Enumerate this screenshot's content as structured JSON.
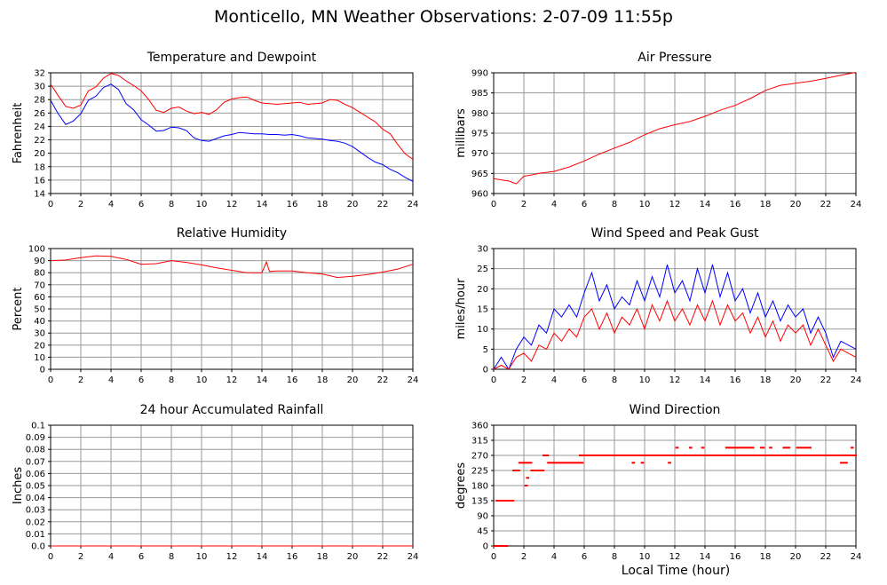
{
  "title": "Monticello, MN Weather Observations: 2-07-09 11:55p",
  "x_axis_title": "Local Time (hour)",
  "colors": {
    "red": "#ff0000",
    "blue": "#0000ff",
    "grid": "#999999",
    "frame": "#000000"
  },
  "chart_data": [
    {
      "id": "temperature",
      "type": "line",
      "title": "Temperature and Dewpoint",
      "ylabel": "Fahrenheit",
      "xlim": [
        0,
        24
      ],
      "ylim": [
        14,
        32
      ],
      "xticks": [
        "0",
        "2",
        "4",
        "6",
        "8",
        "10",
        "12",
        "14",
        "16",
        "18",
        "20",
        "22",
        "24"
      ],
      "yticks": [
        "14",
        "16",
        "18",
        "20",
        "22",
        "24",
        "26",
        "28",
        "30",
        "32"
      ],
      "grid": true,
      "series": [
        {
          "color": "#ff0000",
          "x": [
            0,
            0.5,
            1,
            1.5,
            2,
            2.5,
            3,
            3.5,
            4,
            4.5,
            5,
            5.5,
            6,
            6.5,
            7,
            7.5,
            8,
            8.5,
            9,
            9.5,
            10,
            10.5,
            11,
            11.5,
            12,
            12.5,
            13,
            13.5,
            14,
            14.5,
            15,
            15.5,
            16,
            16.5,
            17,
            17.5,
            18,
            18.5,
            19,
            19.5,
            20,
            20.5,
            21,
            21.5,
            22,
            22.5,
            23,
            23.5,
            24
          ],
          "y": [
            30.3,
            28.6,
            27.0,
            26.7,
            27.2,
            29.3,
            29.9,
            31.2,
            31.9,
            31.6,
            30.8,
            30.1,
            29.3,
            28.0,
            26.4,
            26.1,
            26.7,
            26.9,
            26.3,
            25.9,
            26.1,
            25.8,
            26.5,
            27.6,
            28.1,
            28.3,
            28.4,
            27.9,
            27.5,
            27.4,
            27.3,
            27.4,
            27.5,
            27.6,
            27.3,
            27.4,
            27.5,
            28.0,
            27.9,
            27.3,
            26.8,
            26.1,
            25.4,
            24.7,
            23.6,
            22.9,
            21.3,
            19.9,
            19.1
          ]
        },
        {
          "color": "#0000ff",
          "x": [
            0,
            0.5,
            1,
            1.5,
            2,
            2.5,
            3,
            3.5,
            4,
            4.5,
            5,
            5.5,
            6,
            6.5,
            7,
            7.5,
            8,
            8.5,
            9,
            9.5,
            10,
            10.5,
            11,
            11.5,
            12,
            12.5,
            13,
            13.5,
            14,
            14.5,
            15,
            15.5,
            16,
            16.5,
            17,
            17.5,
            18,
            18.5,
            19,
            19.5,
            20,
            20.5,
            21,
            21.5,
            22,
            22.5,
            23,
            23.5,
            24
          ],
          "y": [
            27.9,
            25.9,
            24.3,
            24.8,
            25.9,
            27.9,
            28.5,
            29.8,
            30.3,
            29.5,
            27.4,
            26.5,
            25.0,
            24.2,
            23.3,
            23.4,
            23.9,
            23.8,
            23.4,
            22.3,
            21.9,
            21.8,
            22.2,
            22.6,
            22.8,
            23.1,
            23.0,
            22.9,
            22.9,
            22.8,
            22.8,
            22.7,
            22.8,
            22.6,
            22.3,
            22.2,
            22.1,
            21.9,
            21.8,
            21.5,
            21.0,
            20.2,
            19.4,
            18.7,
            18.3,
            17.6,
            17.1,
            16.4,
            15.8
          ]
        }
      ]
    },
    {
      "id": "pressure",
      "type": "line",
      "title": "Air Pressure",
      "ylabel": "millibars",
      "xlim": [
        0,
        24
      ],
      "ylim": [
        960,
        990
      ],
      "xticks": [
        "0",
        "2",
        "4",
        "6",
        "8",
        "10",
        "12",
        "14",
        "16",
        "18",
        "20",
        "22",
        "24"
      ],
      "yticks": [
        "960",
        "965",
        "970",
        "975",
        "980",
        "985",
        "990"
      ],
      "grid": true,
      "series": [
        {
          "color": "#ff0000",
          "x": [
            0,
            0.5,
            1,
            1.5,
            2,
            2.5,
            3,
            4,
            5,
            6,
            7,
            8,
            9,
            10,
            11,
            12,
            13,
            14,
            15,
            16,
            17,
            18,
            19,
            20,
            21,
            22,
            23,
            24
          ],
          "y": [
            963.7,
            963.4,
            963.1,
            962.4,
            964.3,
            964.6,
            965.0,
            965.5,
            966.6,
            968.1,
            969.8,
            971.3,
            972.7,
            974.6,
            976.1,
            977.1,
            977.9,
            979.2,
            980.7,
            981.9,
            983.6,
            985.6,
            986.9,
            987.4,
            987.9,
            988.6,
            989.4,
            990.1
          ]
        }
      ]
    },
    {
      "id": "humidity",
      "type": "line",
      "title": "Relative Humidity",
      "ylabel": "Percent",
      "xlim": [
        0,
        24
      ],
      "ylim": [
        0,
        100
      ],
      "xticks": [
        "0",
        "2",
        "4",
        "6",
        "8",
        "10",
        "12",
        "14",
        "16",
        "18",
        "20",
        "22",
        "24"
      ],
      "yticks": [
        "0",
        "10",
        "20",
        "30",
        "40",
        "50",
        "60",
        "70",
        "80",
        "90",
        "100"
      ],
      "grid": true,
      "series": [
        {
          "color": "#ff0000",
          "x": [
            0,
            1,
            2,
            3,
            4,
            5,
            6,
            7,
            8,
            9,
            10,
            11,
            12,
            13,
            14,
            14.3,
            14.5,
            15,
            16,
            17,
            18,
            19,
            20,
            21,
            22,
            23,
            24
          ],
          "y": [
            90,
            90.5,
            92.5,
            94,
            93.5,
            91,
            87,
            87.5,
            90,
            88.5,
            86.5,
            84,
            82,
            80,
            80,
            89,
            81,
            81.5,
            81.5,
            80,
            79,
            76,
            77,
            78.5,
            80.5,
            83,
            87
          ]
        }
      ]
    },
    {
      "id": "wind-speed",
      "type": "line",
      "title": "Wind Speed and Peak Gust",
      "ylabel": "miles/hour",
      "xlim": [
        0,
        24
      ],
      "ylim": [
        0,
        30
      ],
      "xticks": [
        "0",
        "2",
        "4",
        "6",
        "8",
        "10",
        "12",
        "14",
        "16",
        "18",
        "20",
        "22",
        "24"
      ],
      "yticks": [
        "0",
        "5",
        "10",
        "15",
        "20",
        "25",
        "30"
      ],
      "grid": true,
      "series": [
        {
          "color": "#0000ff",
          "x": [
            0,
            0.5,
            1,
            1.5,
            2,
            2.5,
            3,
            3.5,
            4,
            4.5,
            5,
            5.5,
            6,
            6.5,
            7,
            7.5,
            8,
            8.5,
            9,
            9.5,
            10,
            10.5,
            11,
            11.5,
            12,
            12.5,
            13,
            13.5,
            14,
            14.5,
            15,
            15.5,
            16,
            16.5,
            17,
            17.5,
            18,
            18.5,
            19,
            19.5,
            20,
            20.5,
            21,
            21.5,
            22,
            22.5,
            23,
            23.5,
            24
          ],
          "y": [
            0,
            3,
            0,
            5,
            8,
            6,
            11,
            9,
            15,
            13,
            16,
            13,
            19,
            24,
            17,
            21,
            15,
            18,
            16,
            22,
            17,
            23,
            18,
            26,
            19,
            22,
            17,
            25,
            19,
            26,
            18,
            24,
            17,
            20,
            14,
            19,
            13,
            17,
            12,
            16,
            13,
            15,
            9,
            13,
            9,
            3,
            7,
            6,
            5
          ]
        },
        {
          "color": "#ff0000",
          "x": [
            0,
            0.5,
            1,
            1.5,
            2,
            2.5,
            3,
            3.5,
            4,
            4.5,
            5,
            5.5,
            6,
            6.5,
            7,
            7.5,
            8,
            8.5,
            9,
            9.5,
            10,
            10.5,
            11,
            11.5,
            12,
            12.5,
            13,
            13.5,
            14,
            14.5,
            15,
            15.5,
            16,
            16.5,
            17,
            17.5,
            18,
            18.5,
            19,
            19.5,
            20,
            20.5,
            21,
            21.5,
            22,
            22.5,
            23,
            23.5,
            24
          ],
          "y": [
            0,
            1,
            0,
            3,
            4,
            2,
            6,
            5,
            9,
            7,
            10,
            8,
            13,
            15,
            10,
            14,
            9,
            13,
            11,
            15,
            10,
            16,
            12,
            17,
            12,
            15,
            11,
            16,
            12,
            17,
            11,
            16,
            12,
            14,
            9,
            13,
            8,
            12,
            7,
            11,
            9,
            11,
            6,
            10,
            6,
            2,
            5,
            4,
            3
          ]
        }
      ]
    },
    {
      "id": "rainfall",
      "type": "line",
      "title": "24 hour Accumulated Rainfall",
      "ylabel": "Inches",
      "xlim": [
        0,
        24
      ],
      "ylim": [
        0,
        0.1
      ],
      "xticks": [
        "0",
        "2",
        "4",
        "6",
        "8",
        "10",
        "12",
        "14",
        "16",
        "18",
        "20",
        "22",
        "24"
      ],
      "yticks": [
        "0.0",
        "0.01",
        "0.02",
        "0.03",
        "0.04",
        "0.05",
        "0.06",
        "0.07",
        "0.08",
        "0.09",
        "0.1"
      ],
      "grid": true,
      "series": [
        {
          "color": "#ff0000",
          "x": [
            0,
            24
          ],
          "y": [
            0,
            0
          ]
        }
      ]
    },
    {
      "id": "wind-direction",
      "type": "scatter",
      "title": "Wind Direction",
      "ylabel": "degrees",
      "xlim": [
        0,
        24
      ],
      "ylim": [
        0,
        360
      ],
      "xticks": [
        "0",
        "2",
        "4",
        "6",
        "8",
        "10",
        "12",
        "14",
        "16",
        "18",
        "20",
        "22",
        "24"
      ],
      "yticks": [
        "0",
        "45",
        "90",
        "135",
        "180",
        "225",
        "270",
        "315",
        "360"
      ],
      "grid": true,
      "series": [
        {
          "color": "#ff0000",
          "segments": [
            [
              0.0,
              0.9,
              0
            ],
            [
              0.2,
              1.3,
              135
            ],
            [
              1.3,
              1.7,
              225
            ],
            [
              1.7,
              2.5,
              248
            ],
            [
              2.1,
              2.2,
              180
            ],
            [
              2.2,
              2.3,
              203
            ],
            [
              2.5,
              3.3,
              225
            ],
            [
              3.3,
              3.6,
              270
            ],
            [
              3.6,
              5.9,
              248
            ],
            [
              5.7,
              12.0,
              270
            ],
            [
              9.2,
              9.3,
              248
            ],
            [
              9.8,
              9.9,
              248
            ],
            [
              11.6,
              11.7,
              248
            ],
            [
              12.0,
              24.0,
              270
            ],
            [
              12.1,
              12.2,
              293
            ],
            [
              13.0,
              13.1,
              293
            ],
            [
              13.8,
              13.9,
              293
            ],
            [
              15.4,
              17.2,
              293
            ],
            [
              17.7,
              17.9,
              293
            ],
            [
              18.3,
              18.4,
              293
            ],
            [
              19.2,
              19.6,
              293
            ],
            [
              20.1,
              21.0,
              293
            ],
            [
              23.0,
              23.4,
              248
            ],
            [
              23.7,
              23.8,
              293
            ]
          ]
        }
      ]
    }
  ]
}
